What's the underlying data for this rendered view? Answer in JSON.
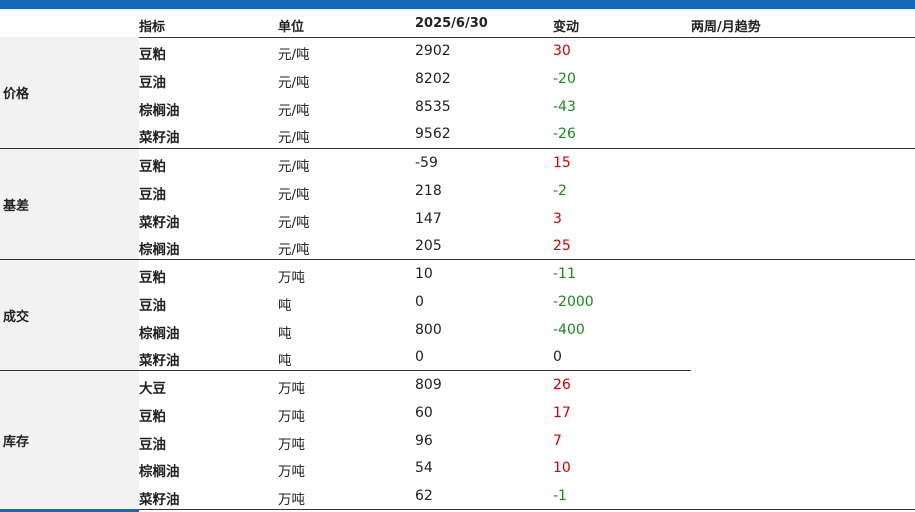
{
  "header": {
    "indicator": "指标",
    "unit": "单位",
    "date": "2025/6/30",
    "change": "变动",
    "trend": "两周/月趋势"
  },
  "sections": [
    {
      "label": "价格",
      "rows": [
        {
          "name": "豆粕",
          "unit": "元/吨",
          "value": "2902",
          "change": "30",
          "dir": "up"
        },
        {
          "name": "豆油",
          "unit": "元/吨",
          "value": "8202",
          "change": "-20",
          "dir": "down"
        },
        {
          "name": "棕榈油",
          "unit": "元/吨",
          "value": "8535",
          "change": "-43",
          "dir": "down"
        },
        {
          "name": "菜籽油",
          "unit": "元/吨",
          "value": "9562",
          "change": "-26",
          "dir": "down"
        }
      ]
    },
    {
      "label": "基差",
      "rows": [
        {
          "name": "豆粕",
          "unit": "元/吨",
          "value": "-59",
          "change": "15",
          "dir": "up"
        },
        {
          "name": "豆油",
          "unit": "元/吨",
          "value": "218",
          "change": "-2",
          "dir": "down"
        },
        {
          "name": "菜籽油",
          "unit": "元/吨",
          "value": "147",
          "change": "3",
          "dir": "up"
        },
        {
          "name": "棕榈油",
          "unit": "元/吨",
          "value": "205",
          "change": "25",
          "dir": "up"
        }
      ]
    },
    {
      "label": "成交",
      "rows": [
        {
          "name": "豆粕",
          "unit": "万吨",
          "value": "10",
          "change": "-11",
          "dir": "down"
        },
        {
          "name": "豆油",
          "unit": "吨",
          "value": "0",
          "change": "-2000",
          "dir": "down"
        },
        {
          "name": "棕榈油",
          "unit": "吨",
          "value": "800",
          "change": "-400",
          "dir": "down"
        },
        {
          "name": "菜籽油",
          "unit": "吨",
          "value": "0",
          "change": "0",
          "dir": "flat"
        }
      ]
    },
    {
      "label": "库存",
      "rows": [
        {
          "name": "大豆",
          "unit": "万吨",
          "value": "809",
          "change": "26",
          "dir": "up"
        },
        {
          "name": "豆粕",
          "unit": "万吨",
          "value": "60",
          "change": "17",
          "dir": "up"
        },
        {
          "name": "豆油",
          "unit": "万吨",
          "value": "96",
          "change": "7",
          "dir": "up"
        },
        {
          "name": "棕榈油",
          "unit": "万吨",
          "value": "54",
          "change": "10",
          "dir": "up"
        },
        {
          "name": "菜籽油",
          "unit": "万吨",
          "value": "62",
          "change": "-1",
          "dir": "down"
        }
      ]
    }
  ],
  "colors": {
    "up": "#d40000",
    "down": "#1a8a1a",
    "flat": "#222222",
    "accent": "#1868b8"
  }
}
